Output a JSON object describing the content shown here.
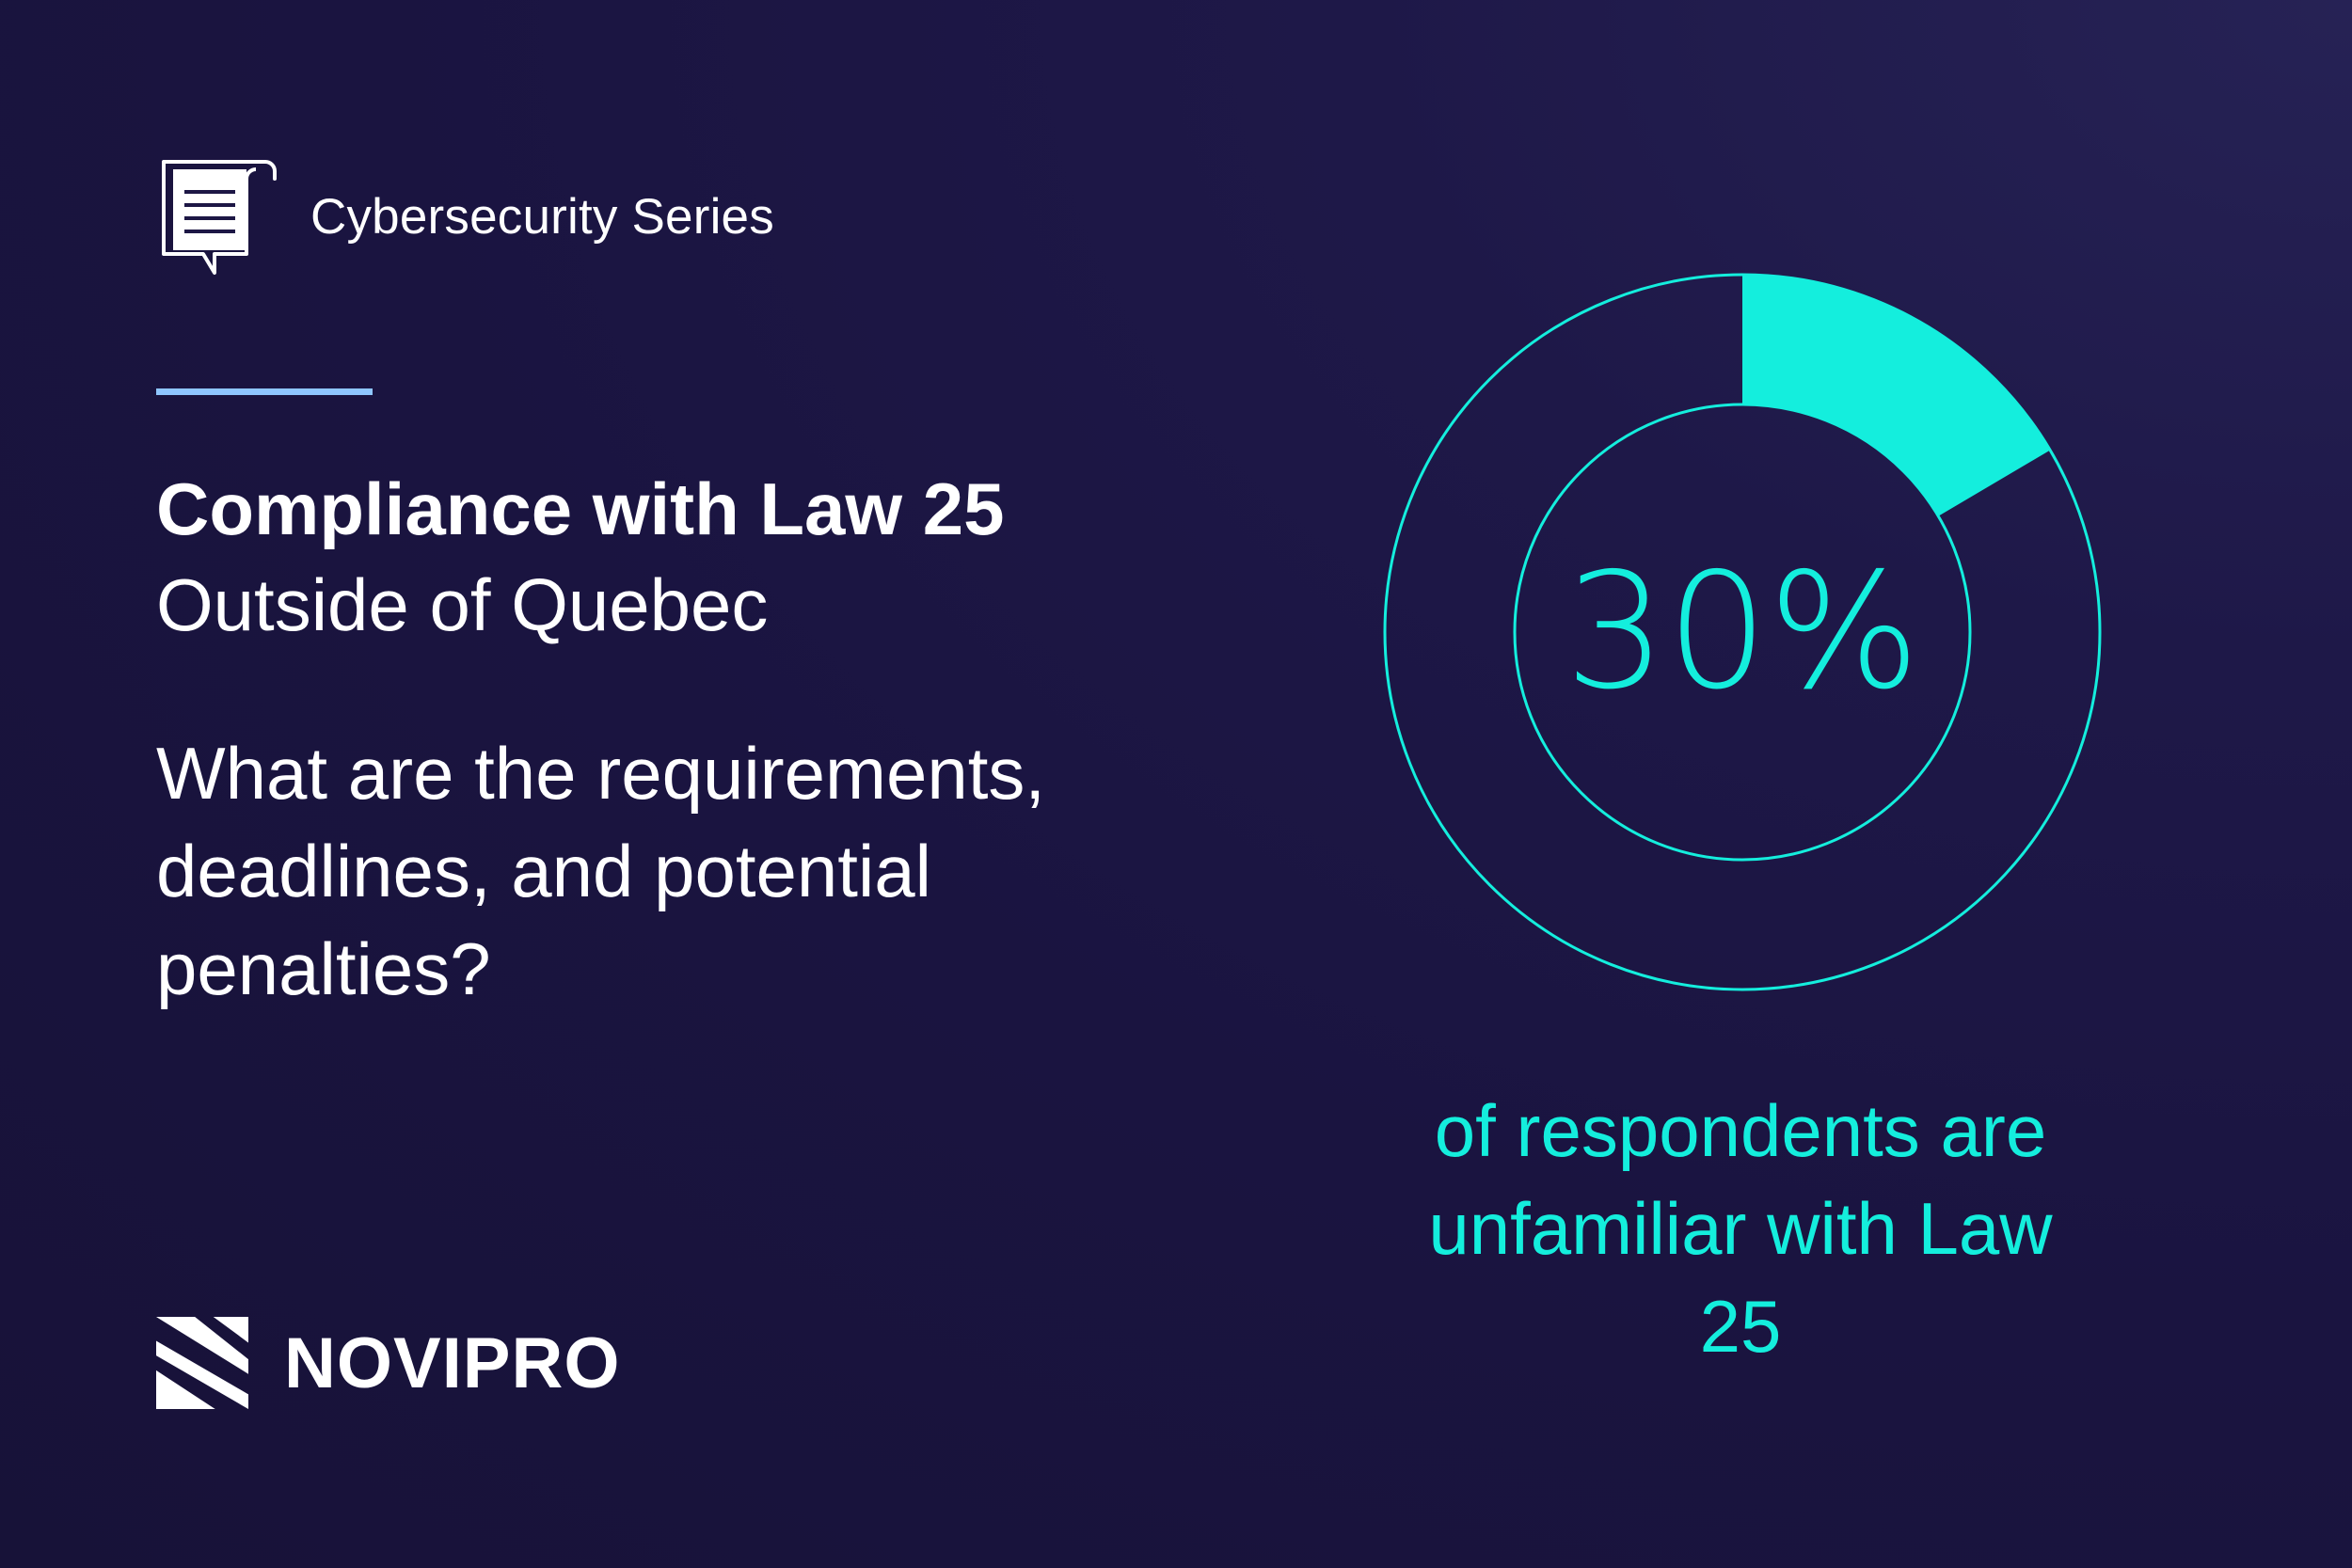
{
  "header": {
    "icon": "document-chat-icon",
    "series_label": "Cybersecurity Series"
  },
  "main": {
    "title": "Compliance with Law 25",
    "subtitle": "Outside of Quebec",
    "question": "What are the requirements, deadlines, and potential penalties?"
  },
  "brand": {
    "icon": "novipro-logo-icon",
    "name": "NOVIPRO"
  },
  "colors": {
    "background": "#1a1440",
    "accent": "#14eedd",
    "divider": "#8fc6ff",
    "text": "#ffffff"
  },
  "chart_data": {
    "type": "pie",
    "style": "donut",
    "values": [
      30
    ],
    "max": 100,
    "center_label": "30%",
    "caption": "of respondents are unfamiliar with Law 25",
    "color": "#14eedd"
  }
}
